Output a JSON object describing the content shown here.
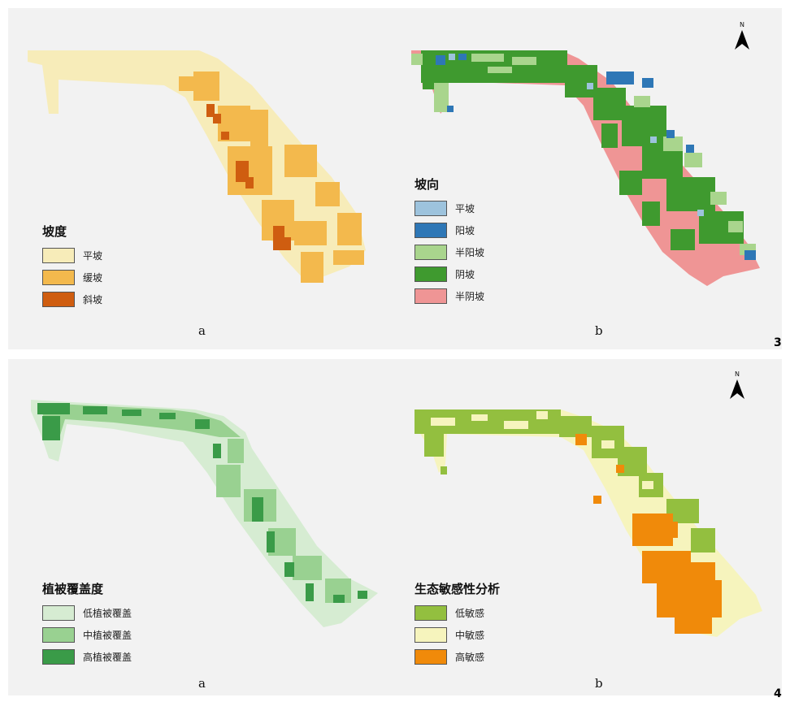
{
  "figures": [
    {
      "number": "3",
      "panels": [
        {
          "sub": "a",
          "legend_title": "坡度",
          "legend": [
            {
              "label": "平坡",
              "color": "#f7ecb9"
            },
            {
              "label": "缓坡",
              "color": "#f3b94d"
            },
            {
              "label": "斜坡",
              "color": "#cf5d10"
            }
          ]
        },
        {
          "sub": "b",
          "legend_title": "坡向",
          "legend": [
            {
              "label": "平坡",
              "color": "#9dc3dd"
            },
            {
              "label": "阳坡",
              "color": "#2e77b6"
            },
            {
              "label": "半阳坡",
              "color": "#a9d58d"
            },
            {
              "label": "阴坡",
              "color": "#3f9a2f"
            },
            {
              "label": "半阴坡",
              "color": "#ef9595"
            }
          ]
        }
      ]
    },
    {
      "number": "4",
      "panels": [
        {
          "sub": "a",
          "legend_title": "植被覆盖度",
          "legend": [
            {
              "label": "低植被覆盖",
              "color": "#d6ecd2"
            },
            {
              "label": "中植被覆盖",
              "color": "#99d191"
            },
            {
              "label": "高植被覆盖",
              "color": "#3a9b48"
            }
          ]
        },
        {
          "sub": "b",
          "legend_title": "生态敏感性分析",
          "legend": [
            {
              "label": "低敏感",
              "color": "#93bf3f"
            },
            {
              "label": "中敏感",
              "color": "#f6f4bd"
            },
            {
              "label": "高敏感",
              "color": "#f08a0a"
            }
          ]
        }
      ]
    }
  ],
  "north_arrow": {
    "letter": "N"
  }
}
